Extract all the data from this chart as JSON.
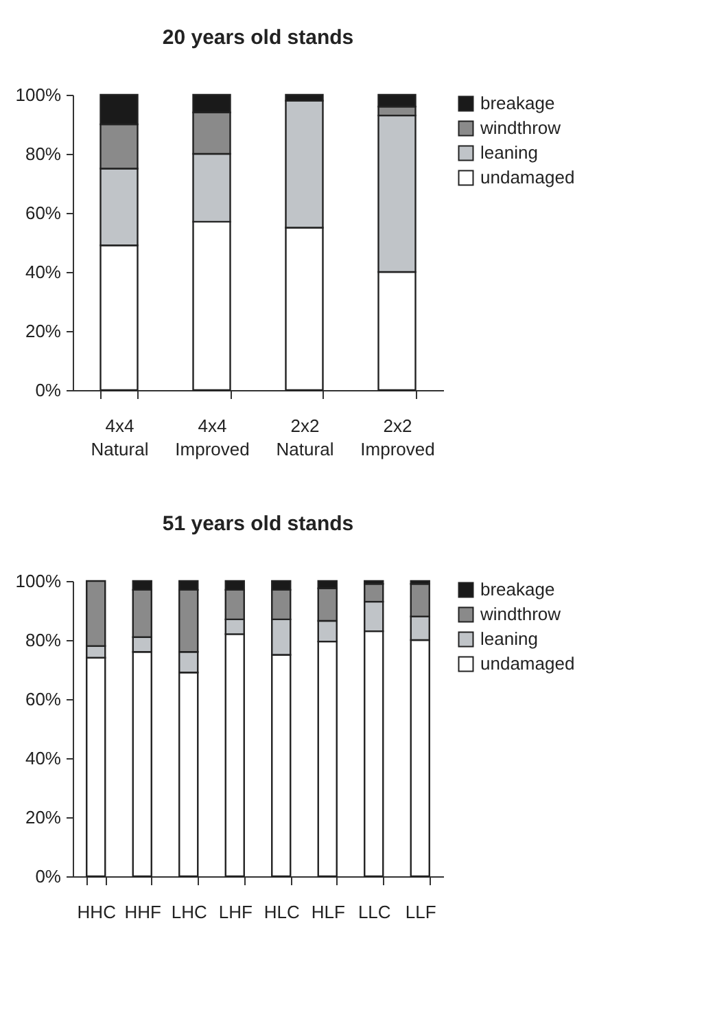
{
  "chart_data": [
    {
      "type": "bar",
      "stacked": true,
      "title": "20 years old stands",
      "categories": [
        "4x4 Natural",
        "4x4 Improved",
        "2x2 Natural",
        "2x2 Improved"
      ],
      "ylim": [
        0,
        100
      ],
      "yticks": [
        {
          "value": 0,
          "label": "0%"
        },
        {
          "value": 20,
          "label": "20%"
        },
        {
          "value": 40,
          "label": "40%"
        },
        {
          "value": 60,
          "label": "60%"
        },
        {
          "value": 80,
          "label": "80%"
        },
        {
          "value": 100,
          "label": "100%"
        }
      ],
      "legend": "right",
      "grid": false,
      "series": [
        {
          "name": "undamaged",
          "color": "#ffffff",
          "values": [
            49,
            57,
            55,
            40
          ]
        },
        {
          "name": "leaning",
          "color": "#c0c4c8",
          "values": [
            26,
            23,
            43,
            53
          ]
        },
        {
          "name": "windthrow",
          "color": "#8a8a8a",
          "values": [
            15,
            14,
            0,
            3
          ]
        },
        {
          "name": "breakage",
          "color": "#1a1a1a",
          "values": [
            10,
            6,
            2,
            4
          ]
        }
      ]
    },
    {
      "type": "bar",
      "stacked": true,
      "title": "51 years old stands",
      "categories": [
        "HHC",
        "HHF",
        "LHC",
        "LHF",
        "HLC",
        "HLF",
        "LLC",
        "LLF"
      ],
      "ylim": [
        0,
        100
      ],
      "yticks": [
        {
          "value": 0,
          "label": "0%"
        },
        {
          "value": 20,
          "label": "20%"
        },
        {
          "value": 40,
          "label": "40%"
        },
        {
          "value": 60,
          "label": "60%"
        },
        {
          "value": 80,
          "label": "80%"
        },
        {
          "value": 100,
          "label": "100%"
        }
      ],
      "legend": "right",
      "grid": false,
      "series": [
        {
          "name": "undamaged",
          "color": "#ffffff",
          "values": [
            74,
            76,
            69,
            82,
            75,
            79.5,
            83,
            80
          ]
        },
        {
          "name": "leaning",
          "color": "#c0c4c8",
          "values": [
            4,
            5,
            7,
            5,
            12,
            7,
            10,
            8
          ]
        },
        {
          "name": "windthrow",
          "color": "#8a8a8a",
          "values": [
            22,
            16,
            21,
            10,
            10,
            11,
            6,
            11
          ]
        },
        {
          "name": "breakage",
          "color": "#1a1a1a",
          "values": [
            0,
            3,
            3,
            3,
            3,
            2.5,
            1,
            1
          ]
        }
      ]
    }
  ]
}
